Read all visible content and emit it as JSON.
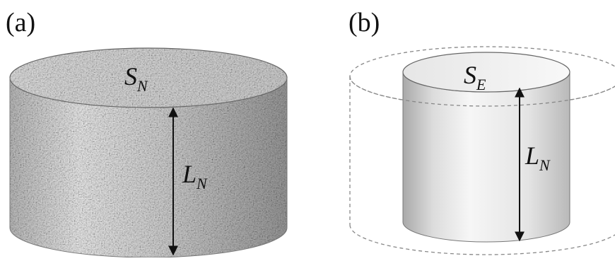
{
  "panels": [
    {
      "label": "(a)",
      "top_symbol": {
        "base": "S",
        "sub": "N"
      },
      "side_symbol": {
        "base": "L",
        "sub": "N"
      }
    },
    {
      "label": "(b)",
      "top_symbol": {
        "base": "S",
        "sub": "E"
      },
      "side_symbol": {
        "base": "L",
        "sub": "N"
      }
    }
  ]
}
